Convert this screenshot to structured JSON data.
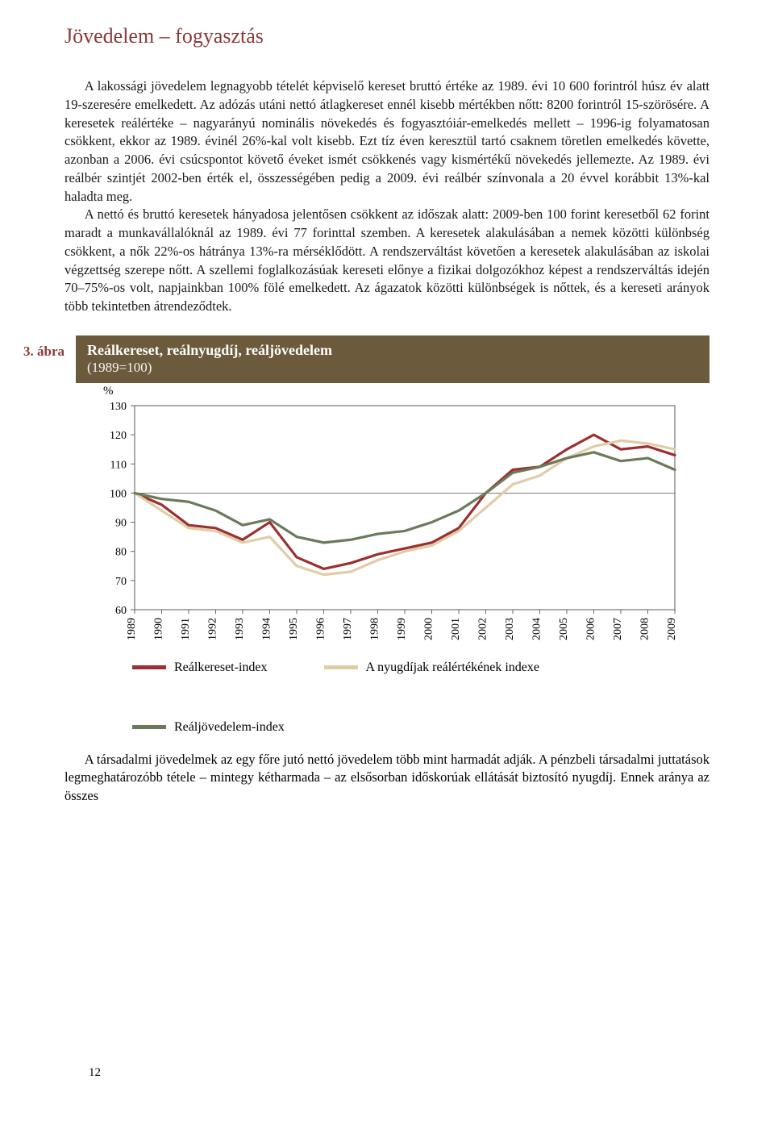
{
  "section_title": "Jövedelem – fogyasztás",
  "paragraph1": "A lakossági jövedelem legnagyobb tételét képviselő kereset bruttó értéke az 1989. évi 10 600 forintról húsz év alatt 19-szeresére emelkedett. Az adózás utáni nettó átlagkereset ennél kisebb mértékben nőtt: 8200 forintról 15-szörösére. A keresetek reálértéke – nagyarányú nominális növekedés és fogyasztóiár-emelkedés mellett – 1996-ig folyamatosan csökkent, ekkor az 1989. évinél 26%-kal volt kisebb. Ezt tíz éven keresztül tartó csaknem töretlen emelkedés követte, azonban a 2006. évi csúcspontot követő éveket ismét csökkenés vagy kismértékű növekedés jellemezte. Az 1989. évi reálbér szintjét 2002-ben érték el, összességében pedig a 2009. évi reálbér színvonala a 20 évvel korábbit 13%-kal haladta meg.",
  "paragraph2": "A nettó és bruttó keresetek hányadosa jelentősen csökkent az időszak alatt: 2009-ben 100 forint keresetből 62 forint maradt a munkavállalóknál az 1989. évi 77 forinttal szemben. A keresetek alakulásában a nemek közötti különbség csökkent, a nők 22%-os hátránya 13%-ra mérséklődött. A rendszerváltást követően a keresetek alakulásában az iskolai végzettség szerepe nőtt. A szellemi foglalkozásúak kereseti előnye a fizikai dolgozókhoz képest a rendszerváltás idején 70–75%-os volt, napjainkban 100% fölé emelkedett. Az ágazatok közötti különbségek is nőttek, és a kereseti arányok több tekintetben átrendeződtek.",
  "figure_label": "3. ábra",
  "chart": {
    "type": "line",
    "title": "Reálkereset, reálnyugdíj, reáljövedelem",
    "subtitle": "(1989=100)",
    "y_unit": "%",
    "years": [
      "1989",
      "1990",
      "1991",
      "1992",
      "1993",
      "1994",
      "1995",
      "1996",
      "1997",
      "1998",
      "1999",
      "2000",
      "2001",
      "2002",
      "2003",
      "2004",
      "2005",
      "2006",
      "2007",
      "2008",
      "2009"
    ],
    "ylim": [
      60,
      130
    ],
    "ytick_step": 10,
    "background_color": "#ffffff",
    "axis_color": "#666666",
    "label_fontsize": 14,
    "series": [
      {
        "name": "Reálkereset-index",
        "color": "#9c2f2f",
        "stroke_width": 3.2,
        "values": [
          100,
          96,
          89,
          88,
          84,
          90,
          78,
          74,
          76,
          79,
          81,
          83,
          88,
          100,
          108,
          109,
          115,
          120,
          115,
          116,
          113
        ]
      },
      {
        "name": "A nyugdíjak reálértékének indexe",
        "color": "#e0cda8",
        "stroke_width": 3.2,
        "values": [
          100,
          94,
          88,
          87,
          83,
          85,
          75,
          72,
          73,
          77,
          80,
          82,
          87,
          95,
          103,
          106,
          112,
          116,
          118,
          117,
          115
        ]
      },
      {
        "name": "Reáljövedelem-index",
        "color": "#6b7a5a",
        "stroke_width": 3.2,
        "values": [
          100,
          98,
          97,
          94,
          89,
          91,
          85,
          83,
          84,
          86,
          87,
          90,
          94,
          100,
          107,
          109,
          112,
          114,
          111,
          112,
          108
        ]
      }
    ]
  },
  "closing_paragraph": "A társadalmi jövedelmek az egy főre jutó nettó jövedelem több mint harmadát adják. A pénzbeli társadalmi juttatások legmeghatározóbb tétele – mintegy kétharmada – az elsősorban időskorúak ellátását biztosító nyugdíj. Ennek aránya az összes",
  "page_number": "12"
}
